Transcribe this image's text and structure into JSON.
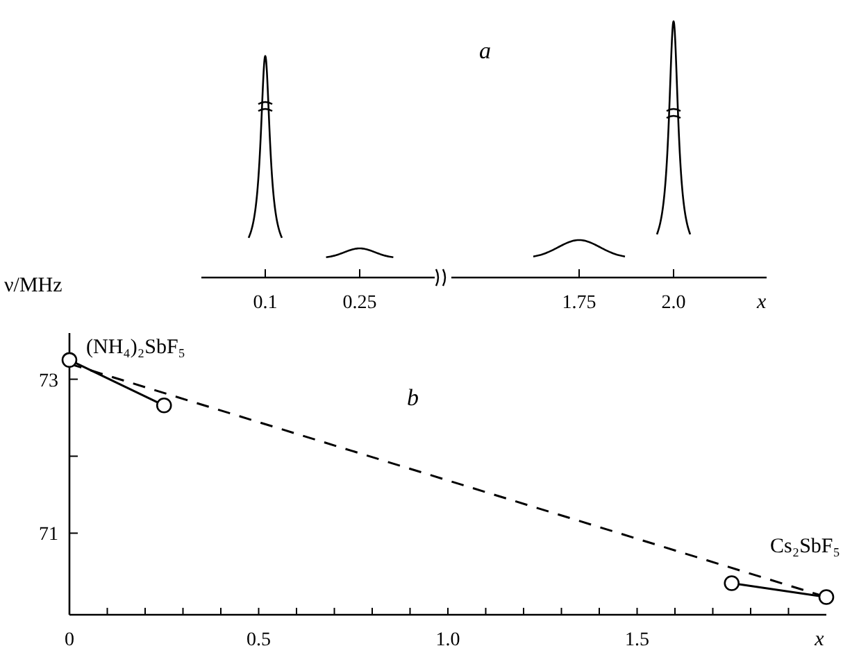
{
  "chart_data": [
    {
      "type": "other",
      "title": "a",
      "categories": [
        "0.1",
        "0.25",
        "1.75",
        "2.0"
      ],
      "xlabel": "x"
    },
    {
      "type": "line",
      "title": "b",
      "ylabel": "ν/MHz",
      "xlabel": "x",
      "xlim": [
        0,
        2.0
      ],
      "xticks": [
        0,
        {
          "value": 0.1,
          "label": null
        },
        {
          "value": 0.2,
          "label": null
        },
        {
          "value": 0.3,
          "label": null
        },
        {
          "value": 0.4,
          "label": null
        },
        0.5,
        {
          "value": 0.6,
          "label": null
        },
        {
          "value": 0.7,
          "label": null
        },
        {
          "value": 0.8,
          "label": null
        },
        {
          "value": 0.9,
          "label": null
        },
        {
          "value": 1.0,
          "label": "1.0"
        },
        {
          "value": 1.1,
          "label": null
        },
        {
          "value": 1.2,
          "label": null
        },
        {
          "value": 1.3,
          "label": null
        },
        {
          "value": 1.4,
          "label": null
        },
        1.5,
        {
          "value": 1.6,
          "label": null
        },
        {
          "value": 1.7,
          "label": null
        },
        {
          "value": 1.8,
          "label": null
        },
        {
          "value": 1.9,
          "label": null
        }
      ],
      "ylim": [
        69.94,
        73.6
      ],
      "yticks": [
        {
          "value": 72,
          "label": null
        },
        73,
        71
      ],
      "series": [
        {
          "color": "#000000",
          "x": [
            0,
            2.0
          ],
          "values": [
            73.2,
            70.17
          ],
          "line_style": "dashed"
        },
        {
          "color": "#000000",
          "x": [
            0,
            0.25
          ],
          "values": [
            73.25,
            72.66
          ],
          "line_style": "solid",
          "marker": "circle"
        },
        {
          "color": "#000000",
          "x": [
            1.75,
            2.0
          ],
          "values": [
            70.35,
            70.17
          ],
          "line_style": "solid",
          "marker": "circle"
        }
      ],
      "annotations": [
        {
          "text": "(NH₄)₂SbF₅",
          "x": 0,
          "y": 73.25
        },
        {
          "text": "Cs₂SbF₅",
          "x": 2.0,
          "y": 70.17
        }
      ],
      "grid": false
    }
  ]
}
